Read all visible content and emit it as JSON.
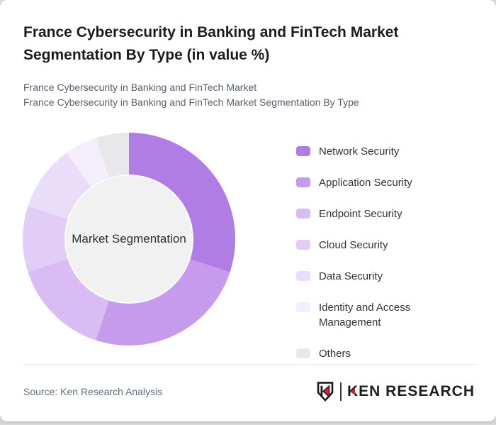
{
  "page": {
    "background": "#d9d9dc",
    "card_background": "#ffffff"
  },
  "header": {
    "title": "France Cybersecurity in Banking and FinTech Market Segmentation By Type (in value %)",
    "subtitle_lines": [
      "France Cybersecurity in Banking and FinTech Market",
      "France Cybersecurity in Banking and FinTech Market Segmentation By Type"
    ]
  },
  "chart_data": {
    "type": "pie",
    "variant": "donut",
    "title": "France Cybersecurity in Banking and FinTech Market Segmentation By Type (in value %)",
    "center_label": "Market Segmentation",
    "legend_position": "right",
    "start_angle_deg": 0,
    "direction": "clockwise",
    "units": "percent of value",
    "values_note": "percentages estimated from arc angles; no numeric labels shown in image",
    "segments": [
      {
        "label": "Network Security",
        "value_pct": 30,
        "color": "#b07de5"
      },
      {
        "label": "Application Security",
        "value_pct": 25,
        "color": "#c69bee"
      },
      {
        "label": "Endpoint Security",
        "value_pct": 15,
        "color": "#dabcf5"
      },
      {
        "label": "Cloud Security",
        "value_pct": 10,
        "color": "#e2cdf7"
      },
      {
        "label": "Data Security",
        "value_pct": 10,
        "color": "#eaddfa"
      },
      {
        "label": "Identity and Access Management",
        "value_pct": 5,
        "color": "#f4edfc"
      },
      {
        "label": "Others",
        "value_pct": 5,
        "color": "#e8e7e9"
      }
    ]
  },
  "footer": {
    "source_text": "Source: Ken Research Analysis",
    "logo_text": "KEN RESEARCH"
  },
  "colors": {
    "brand_red": "#c1272d",
    "donut_center_fill": "#f1f1f2"
  }
}
